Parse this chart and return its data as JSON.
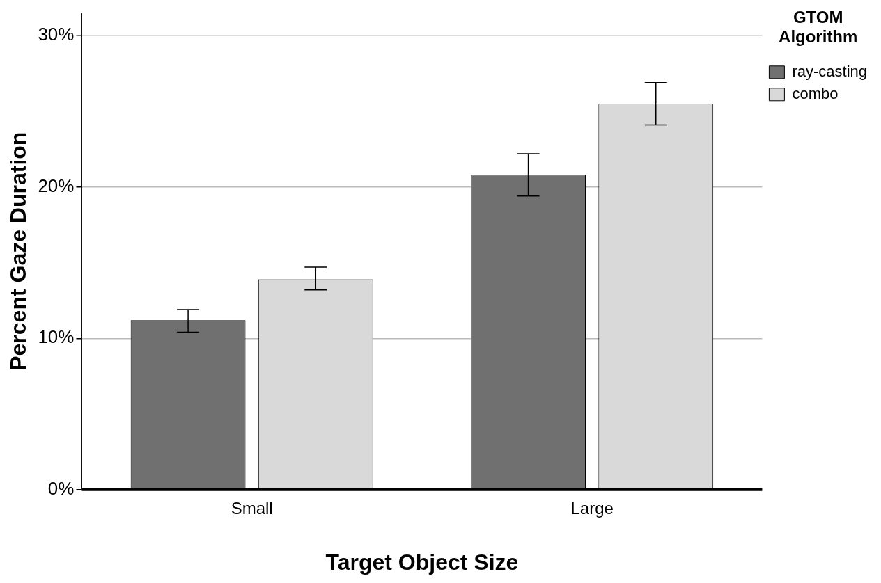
{
  "chart_data": {
    "type": "bar",
    "xlabel": "Target Object Size",
    "ylabel": "Percent Gaze Duration",
    "legend_title": "GTOM Algorithm",
    "categories": [
      "Small",
      "Large"
    ],
    "series": [
      {
        "name": "ray-casting",
        "color": "#707070",
        "values": [
          11.2,
          20.8
        ],
        "errors": [
          [
            10.4,
            11.9
          ],
          [
            19.4,
            22.2
          ]
        ]
      },
      {
        "name": "combo",
        "color": "#d9d9d9",
        "values": [
          13.9,
          25.5
        ],
        "errors": [
          [
            13.2,
            14.7
          ],
          [
            24.1,
            26.9
          ]
        ]
      }
    ],
    "ylim": [
      0,
      31.5
    ],
    "yticks": [
      {
        "value": 0,
        "label": "0%"
      },
      {
        "value": 10,
        "label": "10%"
      },
      {
        "value": 20,
        "label": "20%"
      },
      {
        "value": 30,
        "label": "30%"
      }
    ],
    "grid": "y",
    "legend": "top right"
  }
}
